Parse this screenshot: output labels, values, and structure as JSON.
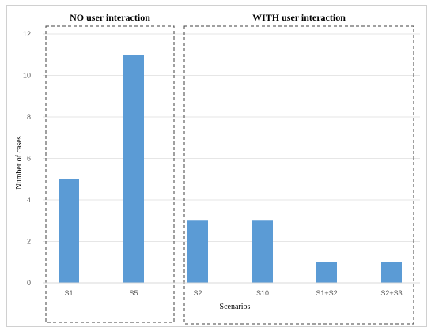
{
  "chart_data": {
    "type": "bar",
    "categories": [
      "S1",
      "S5",
      "S2",
      "S10",
      "S1+S2",
      "S2+S3"
    ],
    "values": [
      5,
      11,
      3,
      3,
      1,
      1
    ],
    "xlabel": "Scenarios",
    "ylabel": "Number of cases",
    "ylim": [
      0,
      12
    ],
    "yticks": [
      0,
      2,
      4,
      6,
      8,
      10,
      12
    ],
    "grid": true,
    "bar_color": "#5b9bd5",
    "groups": [
      {
        "label": "NO user interaction",
        "categories": [
          "S1",
          "S5"
        ]
      },
      {
        "label": "WITH user interaction",
        "categories": [
          "S2",
          "S10",
          "S1+S2",
          "S2+S3"
        ]
      }
    ]
  }
}
